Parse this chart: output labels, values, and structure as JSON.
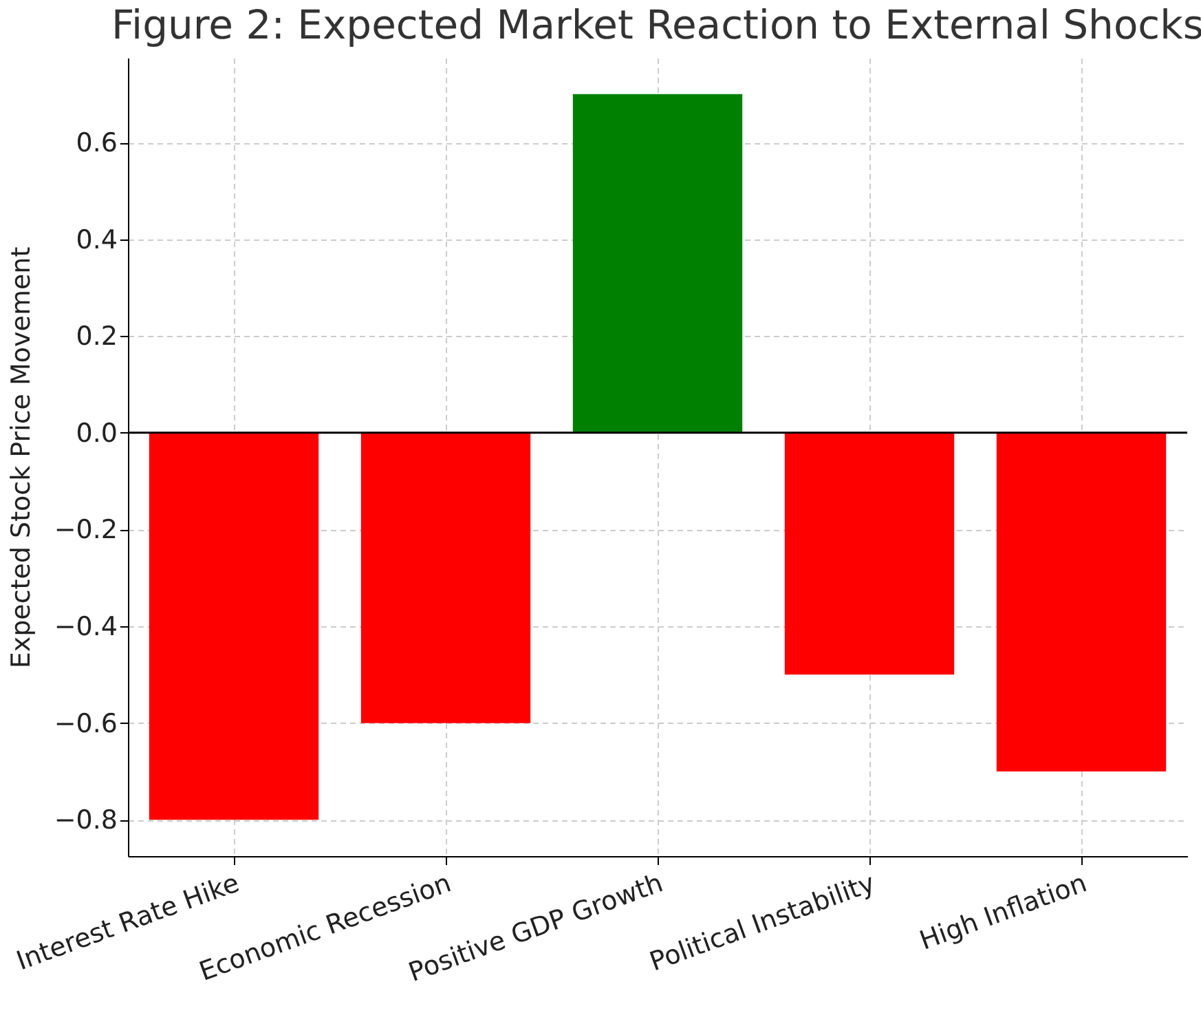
{
  "chart_data": {
    "type": "bar",
    "title": "Figure 2: Expected Market Reaction to External Shocks",
    "ylabel": "Expected Stock Price Movement",
    "categories": [
      "Interest Rate Hike",
      "Economic Recession",
      "Positive GDP Growth",
      "Political Instability",
      "High Inflation"
    ],
    "values": [
      -0.8,
      -0.6,
      0.7,
      -0.5,
      -0.7
    ],
    "colors": [
      "#ff0000",
      "#ff0000",
      "#008000",
      "#ff0000",
      "#ff0000"
    ],
    "ylim": [
      -0.875,
      0.775
    ],
    "yticks": [
      {
        "value": -0.8,
        "label": "−0.8"
      },
      {
        "value": -0.6,
        "label": "−0.6"
      },
      {
        "value": -0.4,
        "label": "−0.4"
      },
      {
        "value": -0.2,
        "label": "−0.2"
      },
      {
        "value": 0,
        "label": "0.0"
      },
      0.2,
      0.4,
      0.6
    ],
    "grid": true,
    "ref_lines": [
      {
        "axis": "y",
        "value": 0,
        "color": "#000000"
      }
    ]
  }
}
